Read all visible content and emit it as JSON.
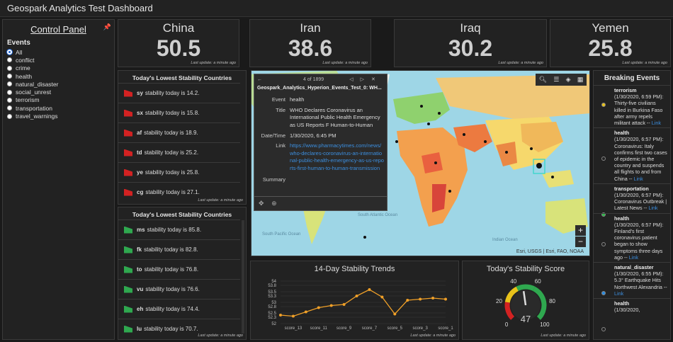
{
  "window": {
    "title": "Geospark Analytics Test Dashboard"
  },
  "control_panel": {
    "title": "Control Panel",
    "pin_icon": "pin-icon",
    "label": "Events",
    "options": [
      "All",
      "conflict",
      "crime",
      "health",
      "natural_disaster",
      "social_unrest",
      "terrorism",
      "transportation",
      "travel_warnings"
    ],
    "selected": "All"
  },
  "indicators": [
    {
      "name": "China",
      "value": "50.5",
      "updated": "Last update: a minute ago"
    },
    {
      "name": "Iran",
      "value": "38.6",
      "updated": "Last update: a minute ago"
    },
    {
      "name": "Iraq",
      "value": "30.2",
      "updated": "Last update: a minute ago"
    },
    {
      "name": "Yemen",
      "value": "25.8",
      "updated": "Last update: a minute ago"
    }
  ],
  "lowest_list": {
    "title": "Today's Lowest Stability Countries",
    "color": "#d32222",
    "rows": [
      {
        "code": "sy",
        "text": "stability today is 14.2."
      },
      {
        "code": "sx",
        "text": "stability today is 15.8."
      },
      {
        "code": "af",
        "text": "stability today is 18.9."
      },
      {
        "code": "td",
        "text": "stability today is 25.2."
      },
      {
        "code": "ye",
        "text": "stability today is 25.8."
      },
      {
        "code": "cg",
        "text": "stability today is 27.1."
      }
    ],
    "updated": "Last update: a minute ago"
  },
  "highest_list": {
    "title": "Today's Lowest Stability Countries",
    "color": "#2fa84f",
    "rows": [
      {
        "code": "ms",
        "text": "stability today is 85.8."
      },
      {
        "code": "fk",
        "text": "stability today is 82.8."
      },
      {
        "code": "to",
        "text": "stability today is 76.8."
      },
      {
        "code": "vu",
        "text": "stability today is 76.6."
      },
      {
        "code": "eh",
        "text": "stability today is 74.4."
      },
      {
        "code": "lu",
        "text": "stability today is 70.7."
      }
    ],
    "updated": "Last update: a minute ago"
  },
  "map": {
    "popup": {
      "counter": "4 of 1899",
      "title": "Geospark_Analytics_Hyperion_Events_Test_0: WH...",
      "event_key": "Event",
      "event": "health",
      "title_key": "Title",
      "title_val": "WHO Declares Coronavirus an International Public Health Emergency as US Reports F Human-to-Human Transmission",
      "date_key": "Date/Time",
      "date": "1/30/2020, 6:45 PM",
      "link_key": "Link",
      "link": "https://www.pharmacytimes.com/news/who-declares-coronavirus-an-international-public-health-emergency-as-us-reports-first-human-to-human-transmission",
      "summary_key": "Summary"
    },
    "labels": {
      "south_pacific": "South Pacific Ocean",
      "south_atlantic": "South Atlantic Ocean",
      "indian": "Indian Ocean"
    },
    "attribution": "Esri, USGS | Esri, FAO, NOAA",
    "zoom_in": "+",
    "zoom_out": "−"
  },
  "breaking": {
    "title": "Breaking Events",
    "items": [
      {
        "cat": "terrorism",
        "time": "(1/30/2020, 6:59 PM):",
        "text": "Thirty-five civilians killed in Burkina Faso after army repels militant attack --",
        "link": "Link",
        "color": "#e8c21a"
      },
      {
        "cat": "health",
        "time": "(1/30/2020, 6:57 PM):",
        "text": "Coronavirus: Italy confirms first two cases of epidemic in the country and suspends all flights to and from China --",
        "link": "Link",
        "color": "#222222"
      },
      {
        "cat": "transportation",
        "time": "(1/30/2020, 6:57 PM):",
        "text": "Coronavirus Outbreak | Latest News --",
        "link": "Link",
        "color": "#2fb84a"
      },
      {
        "cat": "health",
        "time": "(1/30/2020, 6:57 PM):",
        "text": "Finland's first coronavirus patient began to show symptoms three days ago --",
        "link": "Link",
        "color": "#222222"
      },
      {
        "cat": "natural_disaster",
        "time": "(1/30/2020, 6:55 PM):",
        "text": "5.3° Earthquake Hits Northwest Alexandria --",
        "link": "Link",
        "color": "#2a8be0"
      },
      {
        "cat": "health",
        "time": "(1/30/2020,",
        "text": "",
        "link": "",
        "color": "#222222"
      }
    ]
  },
  "trend_chart": {
    "title": "14-Day Stability Trends",
    "updated": "Last update: a minute ago"
  },
  "chart_data": {
    "type": "line",
    "title": "14-Day Stability Trends",
    "x": [
      "score_14",
      "score_13",
      "score_12",
      "score_11",
      "score_10",
      "score_9",
      "score_8",
      "score_7",
      "score_6",
      "score_5",
      "score_4",
      "score_3",
      "score_2",
      "score_1"
    ],
    "tick_labels": [
      "score_13",
      "score_11",
      "score_9",
      "score_7",
      "score_5",
      "score_3",
      "score_1"
    ],
    "values": [
      52.4,
      52.35,
      52.55,
      52.75,
      52.85,
      52.9,
      53.3,
      53.6,
      53.25,
      52.45,
      53.1,
      53.15,
      53.2,
      53.15
    ],
    "ylim": [
      52,
      54
    ],
    "yticks": [
      52,
      52.3,
      52.5,
      52.8,
      53,
      53.3,
      53.5,
      53.8,
      54
    ],
    "ytick_labels": [
      "52",
      "52.3",
      "52.5",
      "52.8",
      "53",
      "53.3",
      "53.5",
      "53.8",
      "54"
    ],
    "color": "#f0a028",
    "grid": true
  },
  "gauge": {
    "title": "Today's Stability Score",
    "value": 47,
    "labels": [
      "0",
      "20",
      "40",
      "60",
      "80",
      "100"
    ],
    "updated": "Last update: a minute ago"
  }
}
